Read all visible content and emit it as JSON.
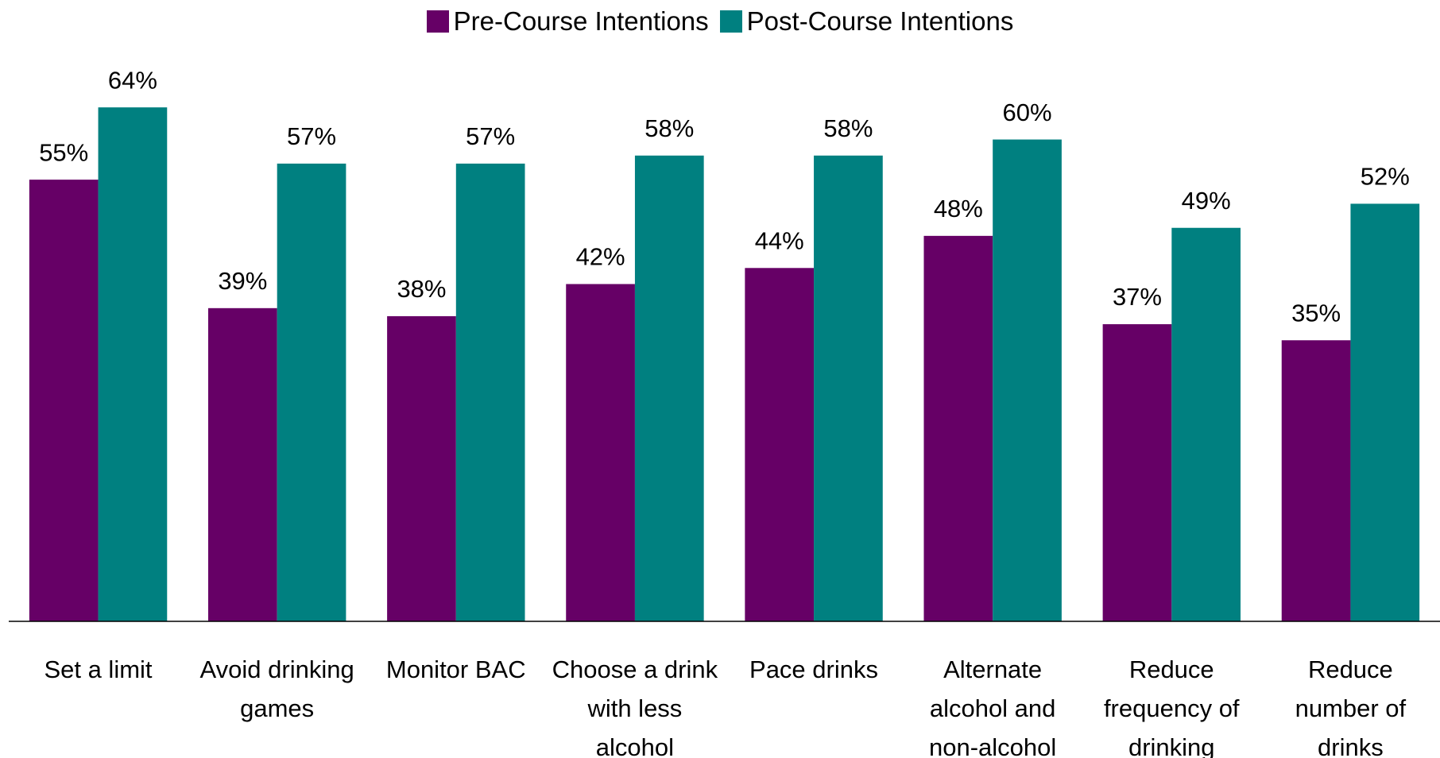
{
  "chart_data": {
    "type": "bar",
    "categories": [
      "Set a limit",
      "Avoid drinking\ngames",
      "Monitor BAC",
      "Choose a drink\nwith less\nalcohol",
      "Pace drinks",
      "Alternate\nalcohol and\nnon-alcohol",
      "Reduce\nfrequency of\ndrinking",
      "Reduce\nnumber of\ndrinks"
    ],
    "series": [
      {
        "name": "Pre-Course Intentions",
        "color": "#660066",
        "values": [
          55,
          39,
          38,
          42,
          44,
          48,
          37,
          35
        ],
        "value_labels": [
          "55%",
          "39%",
          "38%",
          "42%",
          "44%",
          "48%",
          "37%",
          "35%"
        ]
      },
      {
        "name": "Post-Course Intentions",
        "color": "#008080",
        "values": [
          64,
          57,
          57,
          58,
          58,
          60,
          49,
          52
        ],
        "value_labels": [
          "64%",
          "57%",
          "57%",
          "58%",
          "58%",
          "60%",
          "49%",
          "52%"
        ]
      }
    ],
    "ylim": [
      0,
      70
    ],
    "legend": "top"
  }
}
